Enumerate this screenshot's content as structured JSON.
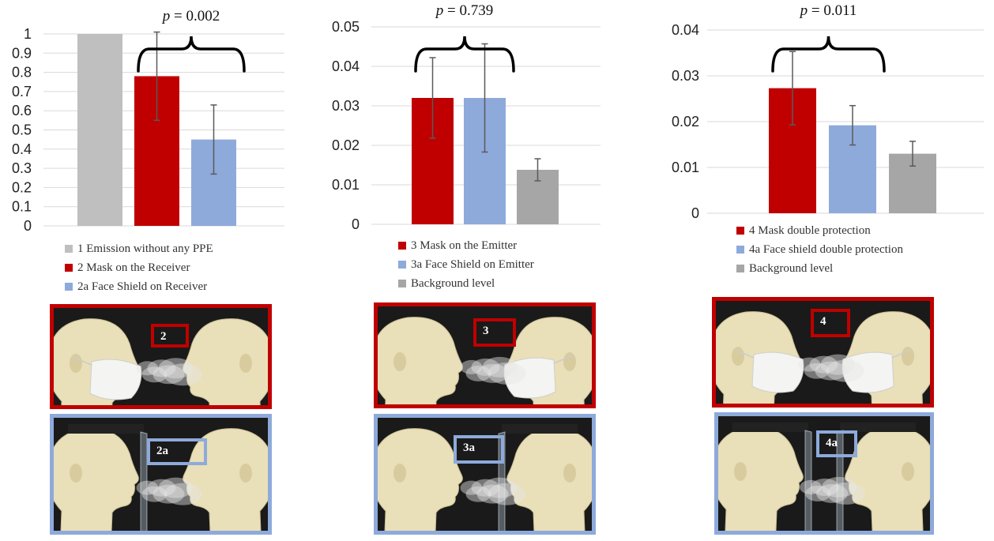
{
  "colors": {
    "red": "#c00000",
    "blue": "#8eaadb",
    "gray_light": "#bfbfbf",
    "gray_dark": "#a6a6a6",
    "error_bar": "#5a5a5a"
  },
  "chart_data": [
    {
      "type": "bar",
      "categories": [
        "1 Emission without any PPE",
        "2 Mask on the Receiver",
        "2a Face Shield on Receiver"
      ],
      "values": [
        1.0,
        0.78,
        0.45
      ],
      "errors": [
        0,
        0.23,
        0.18
      ],
      "bar_colors": [
        "#bfbfbf",
        "#c00000",
        "#8eaadb"
      ],
      "ylim": [
        0,
        1
      ],
      "yticks": [
        "0",
        "0.1",
        "0.2",
        "0.3",
        "0.4",
        "0.5",
        "0.6",
        "0.7",
        "0.8",
        "0.9",
        "1"
      ],
      "grid": true,
      "annotation": {
        "p_label": "p",
        "p_value": " = 0.002",
        "bracket_from": 1,
        "bracket_to": 2
      },
      "legend_placement": "bottom"
    },
    {
      "type": "bar",
      "categories": [
        "3 Mask on the Emitter",
        "3a Face Shield on Emitter",
        "Background level"
      ],
      "values": [
        0.032,
        0.032,
        0.0138
      ],
      "errors": [
        0.0102,
        0.0137,
        0.0028
      ],
      "bar_colors": [
        "#c00000",
        "#8eaadb",
        "#a6a6a6"
      ],
      "ylim": [
        0,
        0.05
      ],
      "yticks": [
        "0",
        "0.01",
        "0.02",
        "0.03",
        "0.04",
        "0.05"
      ],
      "grid": true,
      "annotation": {
        "p_label": "p",
        "p_value": " = 0.739",
        "bracket_from": 0,
        "bracket_to": 1
      },
      "legend_placement": "bottom"
    },
    {
      "type": "bar",
      "categories": [
        "4 Mask double protection",
        "4a Face shield double protection",
        "Background level"
      ],
      "values": [
        0.0273,
        0.0192,
        0.013
      ],
      "errors": [
        0.008,
        0.0043,
        0.0027
      ],
      "bar_colors": [
        "#c00000",
        "#8eaadb",
        "#a6a6a6"
      ],
      "ylim": [
        0,
        0.04
      ],
      "yticks": [
        "0",
        "0.01",
        "0.02",
        "0.03",
        "0.04"
      ],
      "grid": true,
      "annotation": {
        "p_label": "p",
        "p_value": " = 0.011",
        "bracket_from": 0,
        "bracket_to": 1
      },
      "legend_placement": "bottom"
    }
  ],
  "photos": [
    {
      "label": "2",
      "setup": "mask-receiver"
    },
    {
      "label": "2a",
      "setup": "shield-receiver"
    },
    {
      "label": "3",
      "setup": "mask-emitter"
    },
    {
      "label": "3a",
      "setup": "shield-emitter"
    },
    {
      "label": "4",
      "setup": "mask-double"
    },
    {
      "label": "4a",
      "setup": "shield-double"
    }
  ]
}
